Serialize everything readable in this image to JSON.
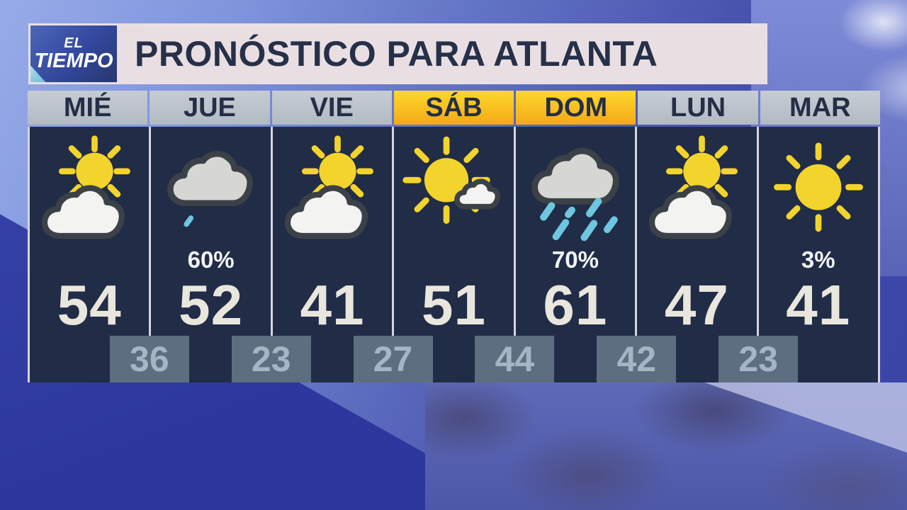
{
  "brand": {
    "line1": "EL",
    "line2": "TIEMPO"
  },
  "title": "PRONÓSTICO PARA ATLANTA",
  "forecast": {
    "days": [
      {
        "name": "MIÉ",
        "highlight": false,
        "icon": "sun-behind-cloud",
        "precip": null,
        "high": "54"
      },
      {
        "name": "JUE",
        "highlight": false,
        "icon": "cloud-light-rain",
        "precip": "60%",
        "high": "52"
      },
      {
        "name": "VIE",
        "highlight": false,
        "icon": "sun-behind-cloud",
        "precip": null,
        "high": "41"
      },
      {
        "name": "SÁB",
        "highlight": true,
        "icon": "sun-with-small-cloud",
        "precip": null,
        "high": "51"
      },
      {
        "name": "DOM",
        "highlight": true,
        "icon": "cloud-rain",
        "precip": "70%",
        "high": "61"
      },
      {
        "name": "LUN",
        "highlight": false,
        "icon": "sun-behind-cloud",
        "precip": null,
        "high": "47"
      },
      {
        "name": "MAR",
        "highlight": false,
        "icon": "sun",
        "precip": "3%",
        "high": "41"
      }
    ],
    "overnight_lows": [
      "36",
      "23",
      "27",
      "44",
      "42",
      "23"
    ]
  },
  "chart_data": {
    "type": "table",
    "title": "PRONÓSTICO PARA ATLANTA",
    "categories": [
      "MIÉ",
      "JUE",
      "VIE",
      "SÁB",
      "DOM",
      "LUN",
      "MAR"
    ],
    "series": [
      {
        "name": "condition",
        "values": [
          "partly-cloudy",
          "cloudy-light-rain",
          "partly-cloudy",
          "mostly-sunny",
          "rain",
          "partly-cloudy",
          "sunny"
        ]
      },
      {
        "name": "precip_chance_pct",
        "values": [
          null,
          60,
          null,
          null,
          70,
          null,
          3
        ]
      },
      {
        "name": "high_f",
        "values": [
          54,
          52,
          41,
          51,
          61,
          47,
          41
        ]
      },
      {
        "name": "overnight_low_f",
        "values": [
          36,
          23,
          27,
          44,
          42,
          23
        ]
      }
    ],
    "legend_position": "none",
    "notes": "Lows shown in boxes straddling day boundaries; SÁB and DOM headers highlighted yellow"
  },
  "colors": {
    "accent_yellow_top": "#ffd92b",
    "accent_yellow_bottom": "#f3a918",
    "header_gray": "#b2bac4",
    "panel_navy": "#212c47",
    "title_bar_bg": "#e9dfe3",
    "title_text": "#273049",
    "high_text": "#e9e6dd",
    "low_box_bg": "#5c6e80",
    "low_text": "#a3b6c4",
    "sun": "#f2d42c",
    "rain": "#6ec6e0",
    "cloud_white": "#f3f3f1",
    "cloud_gray": "#d6d6d3",
    "icon_outline": "#3c4148"
  }
}
